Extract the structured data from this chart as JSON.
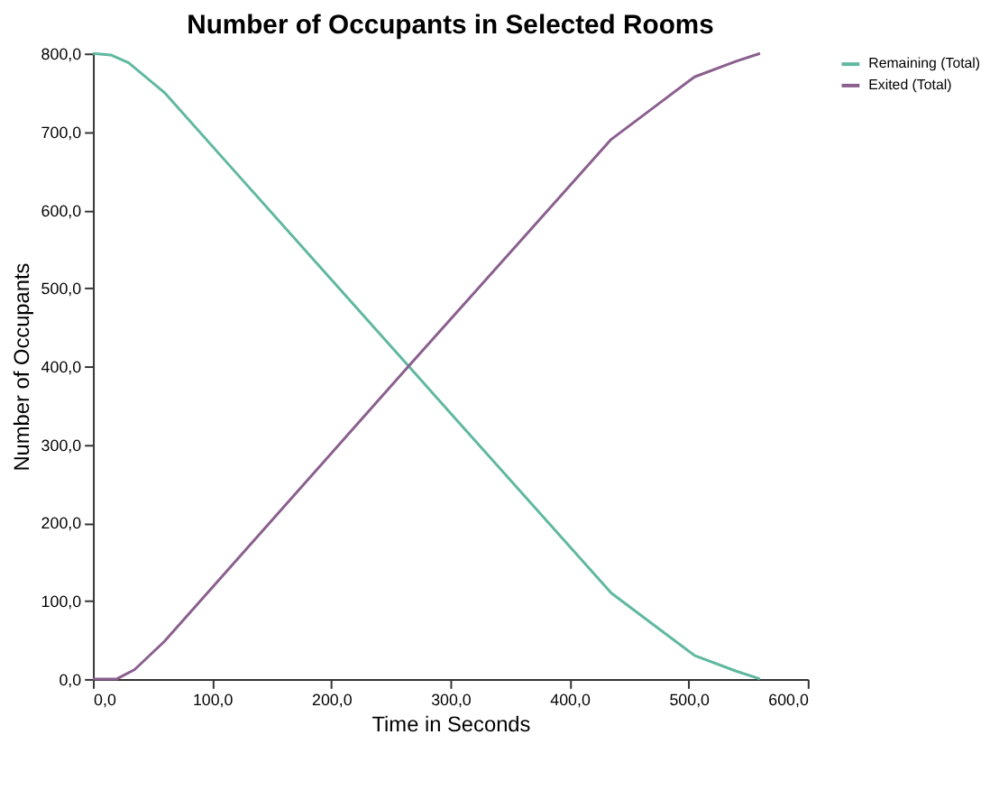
{
  "chart_data": {
    "type": "line",
    "title": "Number of Occupants in Selected Rooms",
    "xlabel": "Time in Seconds",
    "ylabel": "Number of Occupants",
    "series": [
      {
        "name": "Remaining (Total)",
        "color": "#5fb8a0",
        "x": [
          0,
          15,
          30,
          60,
          265,
          435,
          470,
          505,
          540,
          560
        ],
        "values": [
          800,
          798,
          788,
          750,
          400,
          110,
          70,
          30,
          10,
          0
        ]
      },
      {
        "name": "Exited (Total)",
        "color": "#8a5f8e",
        "x": [
          0,
          20,
          35,
          60,
          265,
          435,
          470,
          505,
          540,
          560
        ],
        "values": [
          0,
          0,
          12,
          48,
          400,
          690,
          730,
          770,
          790,
          800
        ]
      }
    ],
    "xlim": [
      0,
      600
    ],
    "ylim": [
      0,
      800
    ],
    "xticks": [
      {
        "value": 0,
        "label": "0,0"
      },
      {
        "value": 100,
        "label": "100,0"
      },
      {
        "value": 200,
        "label": "200,0"
      },
      {
        "value": 300,
        "label": "300,0"
      },
      {
        "value": 400,
        "label": "400,0"
      },
      {
        "value": 500,
        "label": "500,0"
      },
      {
        "value": 600,
        "label": "600,0"
      }
    ],
    "yticks": [
      {
        "value": 0,
        "label": "0,0"
      },
      {
        "value": 100,
        "label": "100,0"
      },
      {
        "value": 200,
        "label": "200,0"
      },
      {
        "value": 300,
        "label": "300,0"
      },
      {
        "value": 400,
        "label": "400,0"
      },
      {
        "value": 500,
        "label": "500,0"
      },
      {
        "value": 600,
        "label": "600,0"
      },
      {
        "value": 700,
        "label": "700,0"
      },
      {
        "value": 800,
        "label": "800,0"
      }
    ],
    "legend": "top right",
    "grid": false,
    "marker": "none",
    "line_style": "solid"
  }
}
